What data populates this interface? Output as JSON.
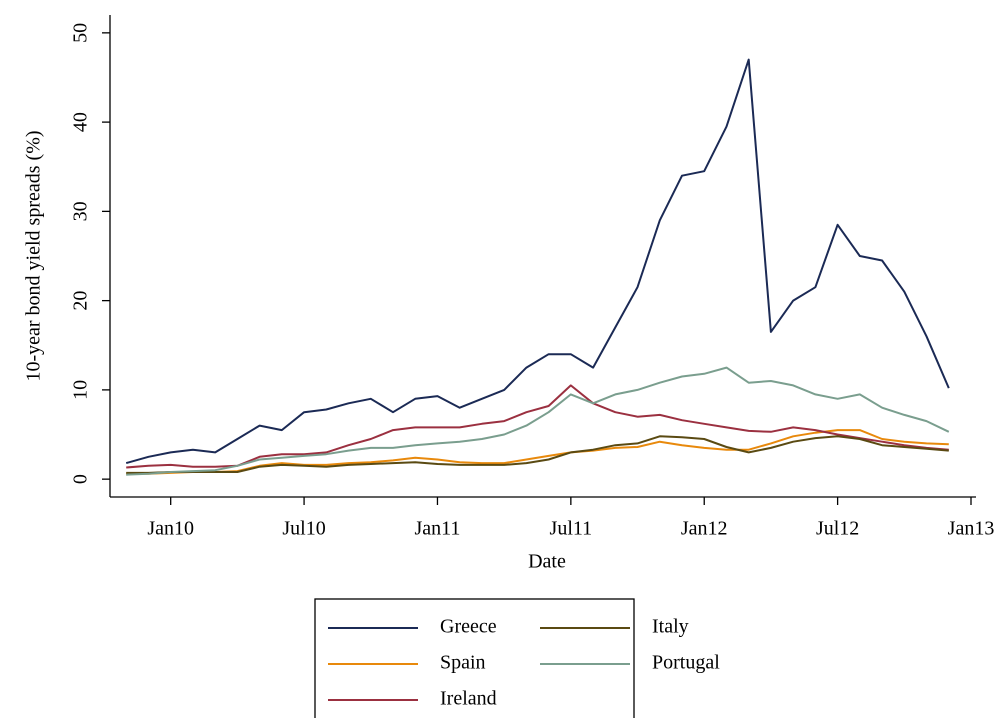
{
  "chart_data": {
    "type": "line",
    "y_label": "10-year bond yield spreads (%)",
    "x_label": "Date",
    "x": [
      "2009-11",
      "2009-12",
      "2010-01",
      "2010-02",
      "2010-03",
      "2010-04",
      "2010-05",
      "2010-06",
      "2010-07",
      "2010-08",
      "2010-09",
      "2010-10",
      "2010-11",
      "2010-12",
      "2011-01",
      "2011-02",
      "2011-03",
      "2011-04",
      "2011-05",
      "2011-06",
      "2011-07",
      "2011-08",
      "2011-09",
      "2011-10",
      "2011-11",
      "2011-12",
      "2012-01",
      "2012-02",
      "2012-03",
      "2012-04",
      "2012-05",
      "2012-06",
      "2012-07",
      "2012-08",
      "2012-09",
      "2012-10",
      "2012-11",
      "2012-12"
    ],
    "xlim": [
      "2009-10",
      "2013-01"
    ],
    "xticks": [
      {
        "value": "2010-01",
        "label": "Jan10"
      },
      {
        "value": "2010-07",
        "label": "Jul10"
      },
      {
        "value": "2011-01",
        "label": "Jan11"
      },
      {
        "value": "2011-07",
        "label": "Jul11"
      },
      {
        "value": "2012-01",
        "label": "Jan12"
      },
      {
        "value": "2012-07",
        "label": "Jul12"
      },
      {
        "value": "2013-01",
        "label": "Jan13"
      }
    ],
    "ylim": [
      -2,
      52
    ],
    "yticks": [
      0,
      10,
      20,
      30,
      40,
      50
    ],
    "legend_columns": 2,
    "series": [
      {
        "name": "Greece",
        "color": "#1b2a55",
        "values": [
          1.8,
          2.5,
          3,
          3.3,
          3,
          4.5,
          6,
          5.5,
          7.5,
          7.8,
          8.5,
          9,
          7.5,
          9,
          9.3,
          8,
          9,
          10,
          12.5,
          14,
          14,
          12.5,
          17,
          21.5,
          29,
          34,
          34.5,
          39.5,
          47,
          16.5,
          20,
          21.5,
          28.5,
          25,
          24.5,
          21,
          16,
          10.2
        ]
      },
      {
        "name": "Spain",
        "color": "#e8890c",
        "values": [
          0.6,
          0.6,
          0.7,
          0.8,
          0.8,
          0.9,
          1.5,
          1.8,
          1.6,
          1.6,
          1.8,
          1.9,
          2.1,
          2.4,
          2.2,
          1.9,
          1.8,
          1.8,
          2.2,
          2.6,
          3.0,
          3.2,
          3.5,
          3.6,
          4.2,
          3.8,
          3.5,
          3.3,
          3.3,
          4.0,
          4.8,
          5.2,
          5.5,
          5.5,
          4.5,
          4.2,
          4.0,
          3.9
        ]
      },
      {
        "name": "Ireland",
        "color": "#9b3040",
        "values": [
          1.3,
          1.5,
          1.6,
          1.4,
          1.4,
          1.5,
          2.5,
          2.8,
          2.8,
          3.0,
          3.8,
          4.5,
          5.5,
          5.8,
          5.8,
          5.8,
          6.2,
          6.5,
          7.5,
          8.2,
          10.5,
          8.5,
          7.5,
          7.0,
          7.2,
          6.6,
          6.2,
          5.8,
          5.4,
          5.3,
          5.8,
          5.5,
          5.0,
          4.6,
          4.2,
          3.8,
          3.5,
          3.3
        ]
      },
      {
        "name": "Italy",
        "color": "#5a4a12",
        "values": [
          0.7,
          0.7,
          0.8,
          0.8,
          0.8,
          0.8,
          1.4,
          1.6,
          1.5,
          1.4,
          1.6,
          1.7,
          1.8,
          1.9,
          1.7,
          1.6,
          1.6,
          1.6,
          1.8,
          2.2,
          3.0,
          3.3,
          3.8,
          4.0,
          4.8,
          4.7,
          4.5,
          3.6,
          3.0,
          3.5,
          4.2,
          4.6,
          4.8,
          4.5,
          3.8,
          3.6,
          3.4,
          3.2
        ]
      },
      {
        "name": "Portugal",
        "color": "#7a9e8e",
        "values": [
          0.5,
          0.6,
          0.8,
          0.9,
          1.0,
          1.5,
          2.2,
          2.4,
          2.6,
          2.8,
          3.2,
          3.5,
          3.5,
          3.8,
          4.0,
          4.2,
          4.5,
          5.0,
          6.0,
          7.5,
          9.5,
          8.5,
          9.5,
          10.0,
          10.8,
          11.5,
          11.8,
          12.5,
          10.8,
          11.0,
          10.5,
          9.5,
          9.0,
          9.5,
          8.0,
          7.2,
          6.5,
          5.3
        ]
      }
    ]
  }
}
